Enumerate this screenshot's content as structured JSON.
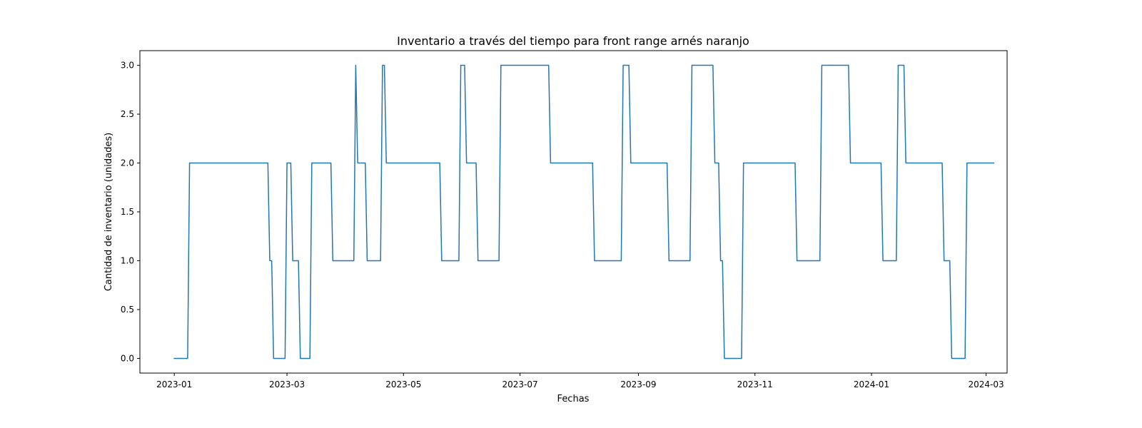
{
  "chart_data": {
    "type": "line",
    "title": "Inventario a través del tiempo para front range arnés naranjo",
    "xlabel": "Fechas",
    "ylabel": "Cantidad de inventario (unidades)",
    "x_axis": "date",
    "xlim": [
      "2022-12-14",
      "2024-03-12"
    ],
    "ylim": [
      -0.15,
      3.15
    ],
    "grid": false,
    "x_ticks": [
      "2023-01-01",
      "2023-03-01",
      "2023-05-01",
      "2023-07-01",
      "2023-09-01",
      "2023-11-01",
      "2024-01-01",
      "2024-03-01"
    ],
    "x_tick_labels": [
      "2023-01",
      "2023-03",
      "2023-05",
      "2023-07",
      "2023-09",
      "2023-11",
      "2024-01",
      "2024-03"
    ],
    "y_ticks": [
      0.0,
      0.5,
      1.0,
      1.5,
      2.0,
      2.5,
      3.0
    ],
    "y_tick_labels": [
      "0.0",
      "0.5",
      "1.0",
      "1.5",
      "2.0",
      "2.5",
      "3.0"
    ],
    "series": [
      {
        "color": "#1f77b4",
        "points": [
          [
            "2023-01-01",
            0
          ],
          [
            "2023-01-08",
            0
          ],
          [
            "2023-01-09",
            2
          ],
          [
            "2023-02-19",
            2
          ],
          [
            "2023-02-20",
            1
          ],
          [
            "2023-02-21",
            1
          ],
          [
            "2023-02-22",
            0
          ],
          [
            "2023-02-28",
            0
          ],
          [
            "2023-03-01",
            2
          ],
          [
            "2023-03-03",
            2
          ],
          [
            "2023-03-04",
            1
          ],
          [
            "2023-03-07",
            1
          ],
          [
            "2023-03-08",
            0
          ],
          [
            "2023-03-13",
            0
          ],
          [
            "2023-03-14",
            2
          ],
          [
            "2023-03-24",
            2
          ],
          [
            "2023-03-25",
            1
          ],
          [
            "2023-04-05",
            1
          ],
          [
            "2023-04-06",
            3
          ],
          [
            "2023-04-07",
            2
          ],
          [
            "2023-04-11",
            2
          ],
          [
            "2023-04-12",
            1
          ],
          [
            "2023-04-19",
            1
          ],
          [
            "2023-04-20",
            3
          ],
          [
            "2023-04-21",
            3
          ],
          [
            "2023-04-22",
            2
          ],
          [
            "2023-05-20",
            2
          ],
          [
            "2023-05-21",
            1
          ],
          [
            "2023-05-30",
            1
          ],
          [
            "2023-05-31",
            3
          ],
          [
            "2023-06-02",
            3
          ],
          [
            "2023-06-03",
            2
          ],
          [
            "2023-06-08",
            2
          ],
          [
            "2023-06-09",
            1
          ],
          [
            "2023-06-20",
            1
          ],
          [
            "2023-06-21",
            3
          ],
          [
            "2023-07-16",
            3
          ],
          [
            "2023-07-17",
            2
          ],
          [
            "2023-08-08",
            2
          ],
          [
            "2023-08-09",
            1
          ],
          [
            "2023-08-23",
            1
          ],
          [
            "2023-08-24",
            3
          ],
          [
            "2023-08-27",
            3
          ],
          [
            "2023-08-28",
            2
          ],
          [
            "2023-09-16",
            2
          ],
          [
            "2023-09-17",
            1
          ],
          [
            "2023-09-28",
            1
          ],
          [
            "2023-09-29",
            3
          ],
          [
            "2023-10-10",
            3
          ],
          [
            "2023-10-11",
            2
          ],
          [
            "2023-10-13",
            2
          ],
          [
            "2023-10-14",
            1
          ],
          [
            "2023-10-15",
            1
          ],
          [
            "2023-10-16",
            0
          ],
          [
            "2023-10-25",
            0
          ],
          [
            "2023-10-26",
            2
          ],
          [
            "2023-11-22",
            2
          ],
          [
            "2023-11-23",
            1
          ],
          [
            "2023-12-05",
            1
          ],
          [
            "2023-12-06",
            3
          ],
          [
            "2023-12-20",
            3
          ],
          [
            "2023-12-21",
            2
          ],
          [
            "2024-01-06",
            2
          ],
          [
            "2024-01-07",
            1
          ],
          [
            "2024-01-14",
            1
          ],
          [
            "2024-01-15",
            3
          ],
          [
            "2024-01-18",
            3
          ],
          [
            "2024-01-19",
            2
          ],
          [
            "2024-02-07",
            2
          ],
          [
            "2024-02-08",
            1
          ],
          [
            "2024-02-11",
            1
          ],
          [
            "2024-02-12",
            0
          ],
          [
            "2024-02-19",
            0
          ],
          [
            "2024-02-20",
            2
          ],
          [
            "2024-03-05",
            2
          ]
        ]
      }
    ]
  }
}
